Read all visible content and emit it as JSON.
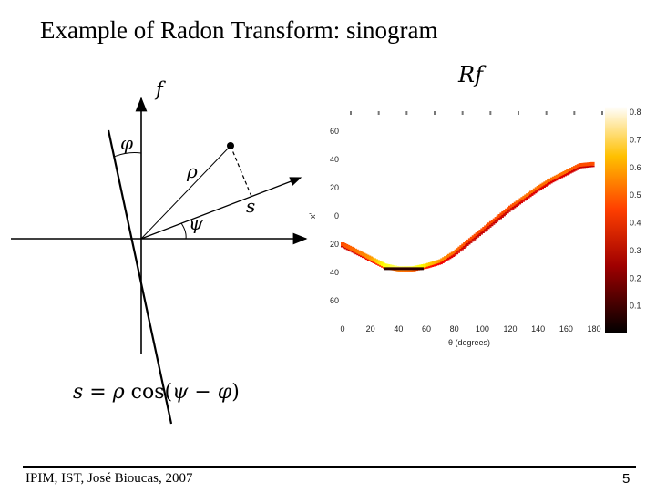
{
  "slide": {
    "title": "Example of Radon Transform: sinogram",
    "footer_author": "IPIM, IST, José Bioucas, 2007",
    "page_number": "5"
  },
  "diagram": {
    "label_f": "f",
    "label_phi": "φ",
    "label_rho": "ρ",
    "label_s": "s",
    "label_psi": "ψ",
    "label_Rf": "Rf",
    "formula": {
      "lhs": "s",
      "eq": " = ",
      "rho": "ρ",
      "cos": " cos(",
      "psi": "ψ",
      "minus": " − ",
      "phi": "φ",
      "close": ")"
    }
  },
  "chart_data": {
    "type": "heatmap",
    "title": "",
    "xlabel": "θ (degrees)",
    "ylabel": "x'",
    "x_ticks": [
      "0",
      "20",
      "40",
      "60",
      "80",
      "100",
      "120",
      "140",
      "160",
      "180"
    ],
    "y_ticks": [
      "60",
      "40",
      "20",
      "0",
      "20",
      "40",
      "60"
    ],
    "y_tick_values": [
      -60,
      -40,
      -20,
      0,
      20,
      40,
      60
    ],
    "xlim": [
      0,
      180
    ],
    "ylim": [
      -70,
      70
    ],
    "colorbar_ticks": [
      "0.8",
      "0.7",
      "0.6",
      "0.5",
      "0.4",
      "0.3",
      "0.2",
      "0.1"
    ],
    "colorbar_tick_values": [
      0.8,
      0.7,
      0.6,
      0.5,
      0.4,
      0.3,
      0.2,
      0.1
    ],
    "colormap": "hot",
    "curve": {
      "theta": [
        0,
        10,
        20,
        30,
        40,
        50,
        60,
        70,
        80,
        90,
        100,
        110,
        120,
        130,
        140,
        150,
        160,
        170,
        180
      ],
      "x": [
        20,
        25,
        30,
        35,
        37,
        37,
        35,
        32,
        26,
        18,
        10,
        2,
        -6,
        -13,
        -20,
        -26,
        -31,
        -36,
        -37
      ],
      "intensity": [
        0.45,
        0.5,
        0.55,
        0.7,
        0.85,
        0.8,
        0.65,
        0.55,
        0.5,
        0.45,
        0.45,
        0.45,
        0.45,
        0.5,
        0.5,
        0.5,
        0.5,
        0.45,
        0.45
      ]
    }
  }
}
